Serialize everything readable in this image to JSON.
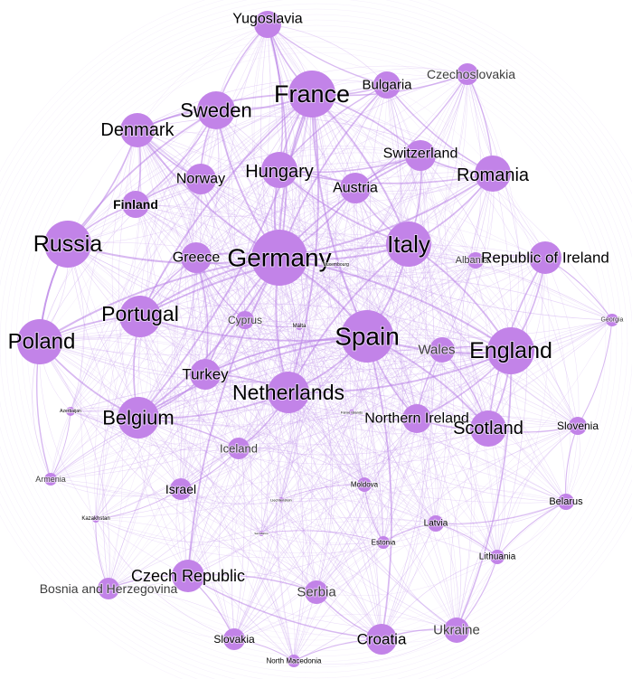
{
  "colors": {
    "background": "#ffffff",
    "node": "#c283e8",
    "edge": "#c9a2ee",
    "edge_strong": "#b87fe6",
    "label_dark": "#000000",
    "label_light": "#3d3d3d"
  },
  "chart_data": {
    "type": "network",
    "nodes": [
      {
        "id": "Yugoslavia",
        "label": "Yugoslavia"
      },
      {
        "id": "France",
        "label": "France"
      },
      {
        "id": "Bulgaria",
        "label": "Bulgaria"
      },
      {
        "id": "Czechoslovakia",
        "label": "Czechoslovakia"
      },
      {
        "id": "Sweden",
        "label": "Sweden"
      },
      {
        "id": "Denmark",
        "label": "Denmark"
      },
      {
        "id": "Switzerland",
        "label": "Switzerland"
      },
      {
        "id": "Romania",
        "label": "Romania"
      },
      {
        "id": "Hungary",
        "label": "Hungary"
      },
      {
        "id": "Norway",
        "label": "Norway"
      },
      {
        "id": "Austria",
        "label": "Austria"
      },
      {
        "id": "Finland",
        "label": "Finland"
      },
      {
        "id": "Russia",
        "label": "Russia"
      },
      {
        "id": "Germany",
        "label": "Germany"
      },
      {
        "id": "Italy",
        "label": "Italy"
      },
      {
        "id": "Greece",
        "label": "Greece"
      },
      {
        "id": "Albania",
        "label": "Albania"
      },
      {
        "id": "Republic of Ireland",
        "label": "Republic of Ireland"
      },
      {
        "id": "Luxembourg",
        "label": "Luxembourg"
      },
      {
        "id": "Portugal",
        "label": "Portugal"
      },
      {
        "id": "Cyprus",
        "label": "Cyprus"
      },
      {
        "id": "Malta",
        "label": "Malta"
      },
      {
        "id": "Spain",
        "label": "Spain"
      },
      {
        "id": "Georgia",
        "label": "Georgia"
      },
      {
        "id": "Poland",
        "label": "Poland"
      },
      {
        "id": "Wales",
        "label": "Wales"
      },
      {
        "id": "England",
        "label": "England"
      },
      {
        "id": "Turkey",
        "label": "Turkey"
      },
      {
        "id": "Netherlands",
        "label": "Netherlands"
      },
      {
        "id": "Azerbaijan",
        "label": "Azerbaijan"
      },
      {
        "id": "Belgium",
        "label": "Belgium"
      },
      {
        "id": "Faroe Islands",
        "label": "Faroe Islands"
      },
      {
        "id": "Northern Ireland",
        "label": "Northern Ireland"
      },
      {
        "id": "Slovenia",
        "label": "Slovenia"
      },
      {
        "id": "Scotland",
        "label": "Scotland"
      },
      {
        "id": "Iceland",
        "label": "Iceland"
      },
      {
        "id": "Armenia",
        "label": "Armenia"
      },
      {
        "id": "Israel",
        "label": "Israel"
      },
      {
        "id": "Moldova",
        "label": "Moldova"
      },
      {
        "id": "Liechtenstein",
        "label": "Liechtenstein"
      },
      {
        "id": "Belarus",
        "label": "Belarus"
      },
      {
        "id": "Kazakhstan",
        "label": "Kazakhstan"
      },
      {
        "id": "Latvia",
        "label": "Latvia"
      },
      {
        "id": "San Marino",
        "label": "San Marino"
      },
      {
        "id": "Estonia",
        "label": "Estonia"
      },
      {
        "id": "Lithuania",
        "label": "Lithuania"
      },
      {
        "id": "Czech Republic",
        "label": "Czech Republic"
      },
      {
        "id": "Bosnia and Herzegovina",
        "label": "Bosnia and Herzegovina"
      },
      {
        "id": "Serbia",
        "label": "Serbia"
      },
      {
        "id": "Ukraine",
        "label": "Ukraine"
      },
      {
        "id": "Croatia",
        "label": "Croatia"
      },
      {
        "id": "Slovakia",
        "label": "Slovakia"
      },
      {
        "id": "North Macedonia",
        "label": "North Macedonia"
      }
    ],
    "edges": [
      [
        "England",
        "Scotland"
      ],
      [
        "England",
        "Wales"
      ],
      [
        "England",
        "Northern Ireland"
      ],
      [
        "Scotland",
        "Wales"
      ],
      [
        "Scotland",
        "Northern Ireland"
      ],
      [
        "Wales",
        "Northern Ireland"
      ],
      [
        "Scotland",
        "Republic of Ireland"
      ],
      [
        "England",
        "Republic of Ireland"
      ],
      [
        "Denmark",
        "Sweden"
      ],
      [
        "Denmark",
        "Norway"
      ],
      [
        "Denmark",
        "Finland"
      ],
      [
        "Sweden",
        "Norway"
      ],
      [
        "Sweden",
        "Finland"
      ],
      [
        "Norway",
        "Finland"
      ],
      [
        "Russia",
        "Finland"
      ],
      [
        "Russia",
        "Denmark"
      ],
      [
        "Germany",
        "France"
      ],
      [
        "Germany",
        "Italy"
      ],
      [
        "Germany",
        "Spain"
      ],
      [
        "Germany",
        "Netherlands"
      ],
      [
        "Germany",
        "Hungary"
      ],
      [
        "Germany",
        "Austria"
      ],
      [
        "Germany",
        "Sweden"
      ],
      [
        "Germany",
        "Portugal"
      ],
      [
        "Germany",
        "Russia"
      ],
      [
        "Germany",
        "Poland"
      ],
      [
        "Germany",
        "Belgium"
      ],
      [
        "Germany",
        "Greece"
      ],
      [
        "Germany",
        "Switzerland"
      ],
      [
        "Germany",
        "Turkey"
      ],
      [
        "Germany",
        "Denmark"
      ],
      [
        "Germany",
        "Romania"
      ],
      [
        "Germany",
        "England"
      ],
      [
        "Germany",
        "Czech Republic"
      ],
      [
        "Germany",
        "Bulgaria"
      ],
      [
        "Germany",
        "Yugoslavia"
      ],
      [
        "France",
        "Italy"
      ],
      [
        "France",
        "Spain"
      ],
      [
        "France",
        "Netherlands"
      ],
      [
        "France",
        "Hungary"
      ],
      [
        "France",
        "Sweden"
      ],
      [
        "France",
        "Bulgaria"
      ],
      [
        "France",
        "Belgium"
      ],
      [
        "France",
        "Portugal"
      ],
      [
        "France",
        "Yugoslavia"
      ],
      [
        "France",
        "Czechoslovakia"
      ],
      [
        "France",
        "Switzerland"
      ],
      [
        "France",
        "Denmark"
      ],
      [
        "Italy",
        "Spain"
      ],
      [
        "Italy",
        "Netherlands"
      ],
      [
        "Italy",
        "England"
      ],
      [
        "Italy",
        "Romania"
      ],
      [
        "Italy",
        "Hungary"
      ],
      [
        "Italy",
        "Portugal"
      ],
      [
        "Italy",
        "Austria"
      ],
      [
        "Italy",
        "Switzerland"
      ],
      [
        "Spain",
        "Netherlands"
      ],
      [
        "Spain",
        "England"
      ],
      [
        "Spain",
        "Portugal"
      ],
      [
        "Spain",
        "Belgium"
      ],
      [
        "Spain",
        "Scotland"
      ],
      [
        "Spain",
        "Turkey"
      ],
      [
        "Spain",
        "Croatia"
      ],
      [
        "Spain",
        "Northern Ireland"
      ],
      [
        "Netherlands",
        "Belgium"
      ],
      [
        "Netherlands",
        "Turkey"
      ],
      [
        "Netherlands",
        "Iceland"
      ],
      [
        "Netherlands",
        "England"
      ],
      [
        "Hungary",
        "Austria"
      ],
      [
        "Hungary",
        "Romania"
      ],
      [
        "Hungary",
        "Bulgaria"
      ],
      [
        "Hungary",
        "Yugoslavia"
      ],
      [
        "Austria",
        "Switzerland"
      ],
      [
        "Austria",
        "Czechoslovakia"
      ],
      [
        "Romania",
        "Bulgaria"
      ],
      [
        "Romania",
        "Czechoslovakia"
      ],
      [
        "Bulgaria",
        "Yugoslavia"
      ],
      [
        "Yugoslavia",
        "Sweden"
      ],
      [
        "Poland",
        "Portugal"
      ],
      [
        "Poland",
        "Belgium"
      ],
      [
        "Poland",
        "Russia"
      ],
      [
        "Portugal",
        "Belgium"
      ],
      [
        "Portugal",
        "Greece"
      ],
      [
        "Greece",
        "Cyprus"
      ],
      [
        "Greece",
        "Turkey"
      ],
      [
        "Cyprus",
        "Malta"
      ],
      [
        "Czech Republic",
        "Serbia"
      ],
      [
        "Czech Republic",
        "Croatia"
      ],
      [
        "Czech Republic",
        "Slovakia"
      ],
      [
        "Czech Republic",
        "Bosnia and Herzegovina"
      ],
      [
        "Croatia",
        "Serbia"
      ],
      [
        "Croatia",
        "North Macedonia"
      ],
      [
        "Croatia",
        "Ukraine"
      ],
      [
        "Ukraine",
        "Lithuania"
      ],
      [
        "Latvia",
        "Lithuania"
      ],
      [
        "Latvia",
        "Estonia"
      ],
      [
        "Estonia",
        "Moldova"
      ],
      [
        "Belarus",
        "Lithuania"
      ],
      [
        "Belarus",
        "Latvia"
      ],
      [
        "Slovenia",
        "Belarus"
      ],
      [
        "Georgia",
        "Slovenia"
      ],
      [
        "Georgia",
        "Republic of Ireland"
      ],
      [
        "Albania",
        "Republic of Ireland"
      ],
      [
        "Israel",
        "Iceland"
      ],
      [
        "Israel",
        "Kazakhstan"
      ],
      [
        "Armenia",
        "Azerbaijan"
      ],
      [
        "Armenia",
        "Poland"
      ],
      [
        "Kazakhstan",
        "Bosnia and Herzegovina"
      ],
      [
        "Slovakia",
        "North Macedonia"
      ],
      [
        "Moldova",
        "Liechtenstein"
      ],
      [
        "Luxembourg",
        "Germany"
      ],
      [
        "Faroe Islands",
        "Northern Ireland"
      ],
      [
        "San Marino",
        "Estonia"
      ],
      [
        "Russia",
        "Poland"
      ],
      [
        "Russia",
        "Sweden"
      ],
      [
        "Belgium",
        "Turkey"
      ],
      [
        "Belgium",
        "Iceland"
      ],
      [
        "Switzerland",
        "Romania"
      ],
      [
        "Switzerland",
        "Hungary"
      ],
      [
        "Scotland",
        "Slovenia"
      ],
      [
        "England",
        "Ukraine"
      ]
    ]
  }
}
